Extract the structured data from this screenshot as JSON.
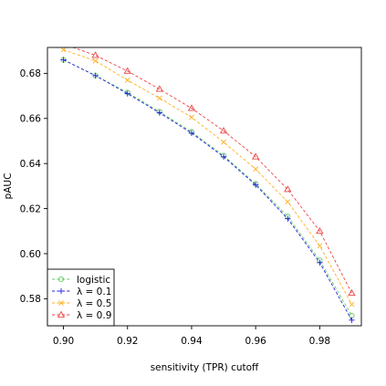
{
  "chart_data": {
    "type": "line",
    "title": "",
    "xlabel": "sensitivity (TPR) cutoff",
    "ylabel": "pAUC",
    "xlim": [
      0.895,
      0.993
    ],
    "ylim": [
      0.568,
      0.6915
    ],
    "x_ticks": [
      0.9,
      0.92,
      0.94,
      0.96,
      0.98
    ],
    "x_tick_labels": [
      "0.90",
      "0.92",
      "0.94",
      "0.96",
      "0.98"
    ],
    "y_ticks": [
      0.58,
      0.6,
      0.62,
      0.64,
      0.66,
      0.68
    ],
    "y_tick_labels": [
      "0.58",
      "0.60",
      "0.62",
      "0.64",
      "0.66",
      "0.68"
    ],
    "grid": false,
    "legend_position": "bottom-left",
    "x": [
      0.9,
      0.91,
      0.92,
      0.93,
      0.94,
      0.95,
      0.96,
      0.97,
      0.98,
      0.99
    ],
    "series": [
      {
        "name": "logistic",
        "color": "#66cc66",
        "marker": "circle",
        "values": [
          0.686,
          0.679,
          0.6715,
          0.663,
          0.654,
          0.6435,
          0.631,
          0.6165,
          0.597,
          0.5725
        ]
      },
      {
        "name": "λ = 0.1",
        "color": "#2222dd",
        "marker": "plus",
        "values": [
          0.686,
          0.679,
          0.671,
          0.6625,
          0.6535,
          0.643,
          0.6305,
          0.6155,
          0.596,
          0.5705
        ]
      },
      {
        "name": "λ = 0.5",
        "color": "#ffb020",
        "marker": "cross",
        "values": [
          0.6905,
          0.6855,
          0.677,
          0.669,
          0.6605,
          0.6495,
          0.6375,
          0.623,
          0.6035,
          0.5775
        ]
      },
      {
        "name": "λ = 0.9",
        "color": "#ee4444",
        "marker": "triangle",
        "values": [
          0.693,
          0.688,
          0.681,
          0.673,
          0.6645,
          0.6545,
          0.643,
          0.6285,
          0.61,
          0.5825
        ]
      }
    ]
  }
}
